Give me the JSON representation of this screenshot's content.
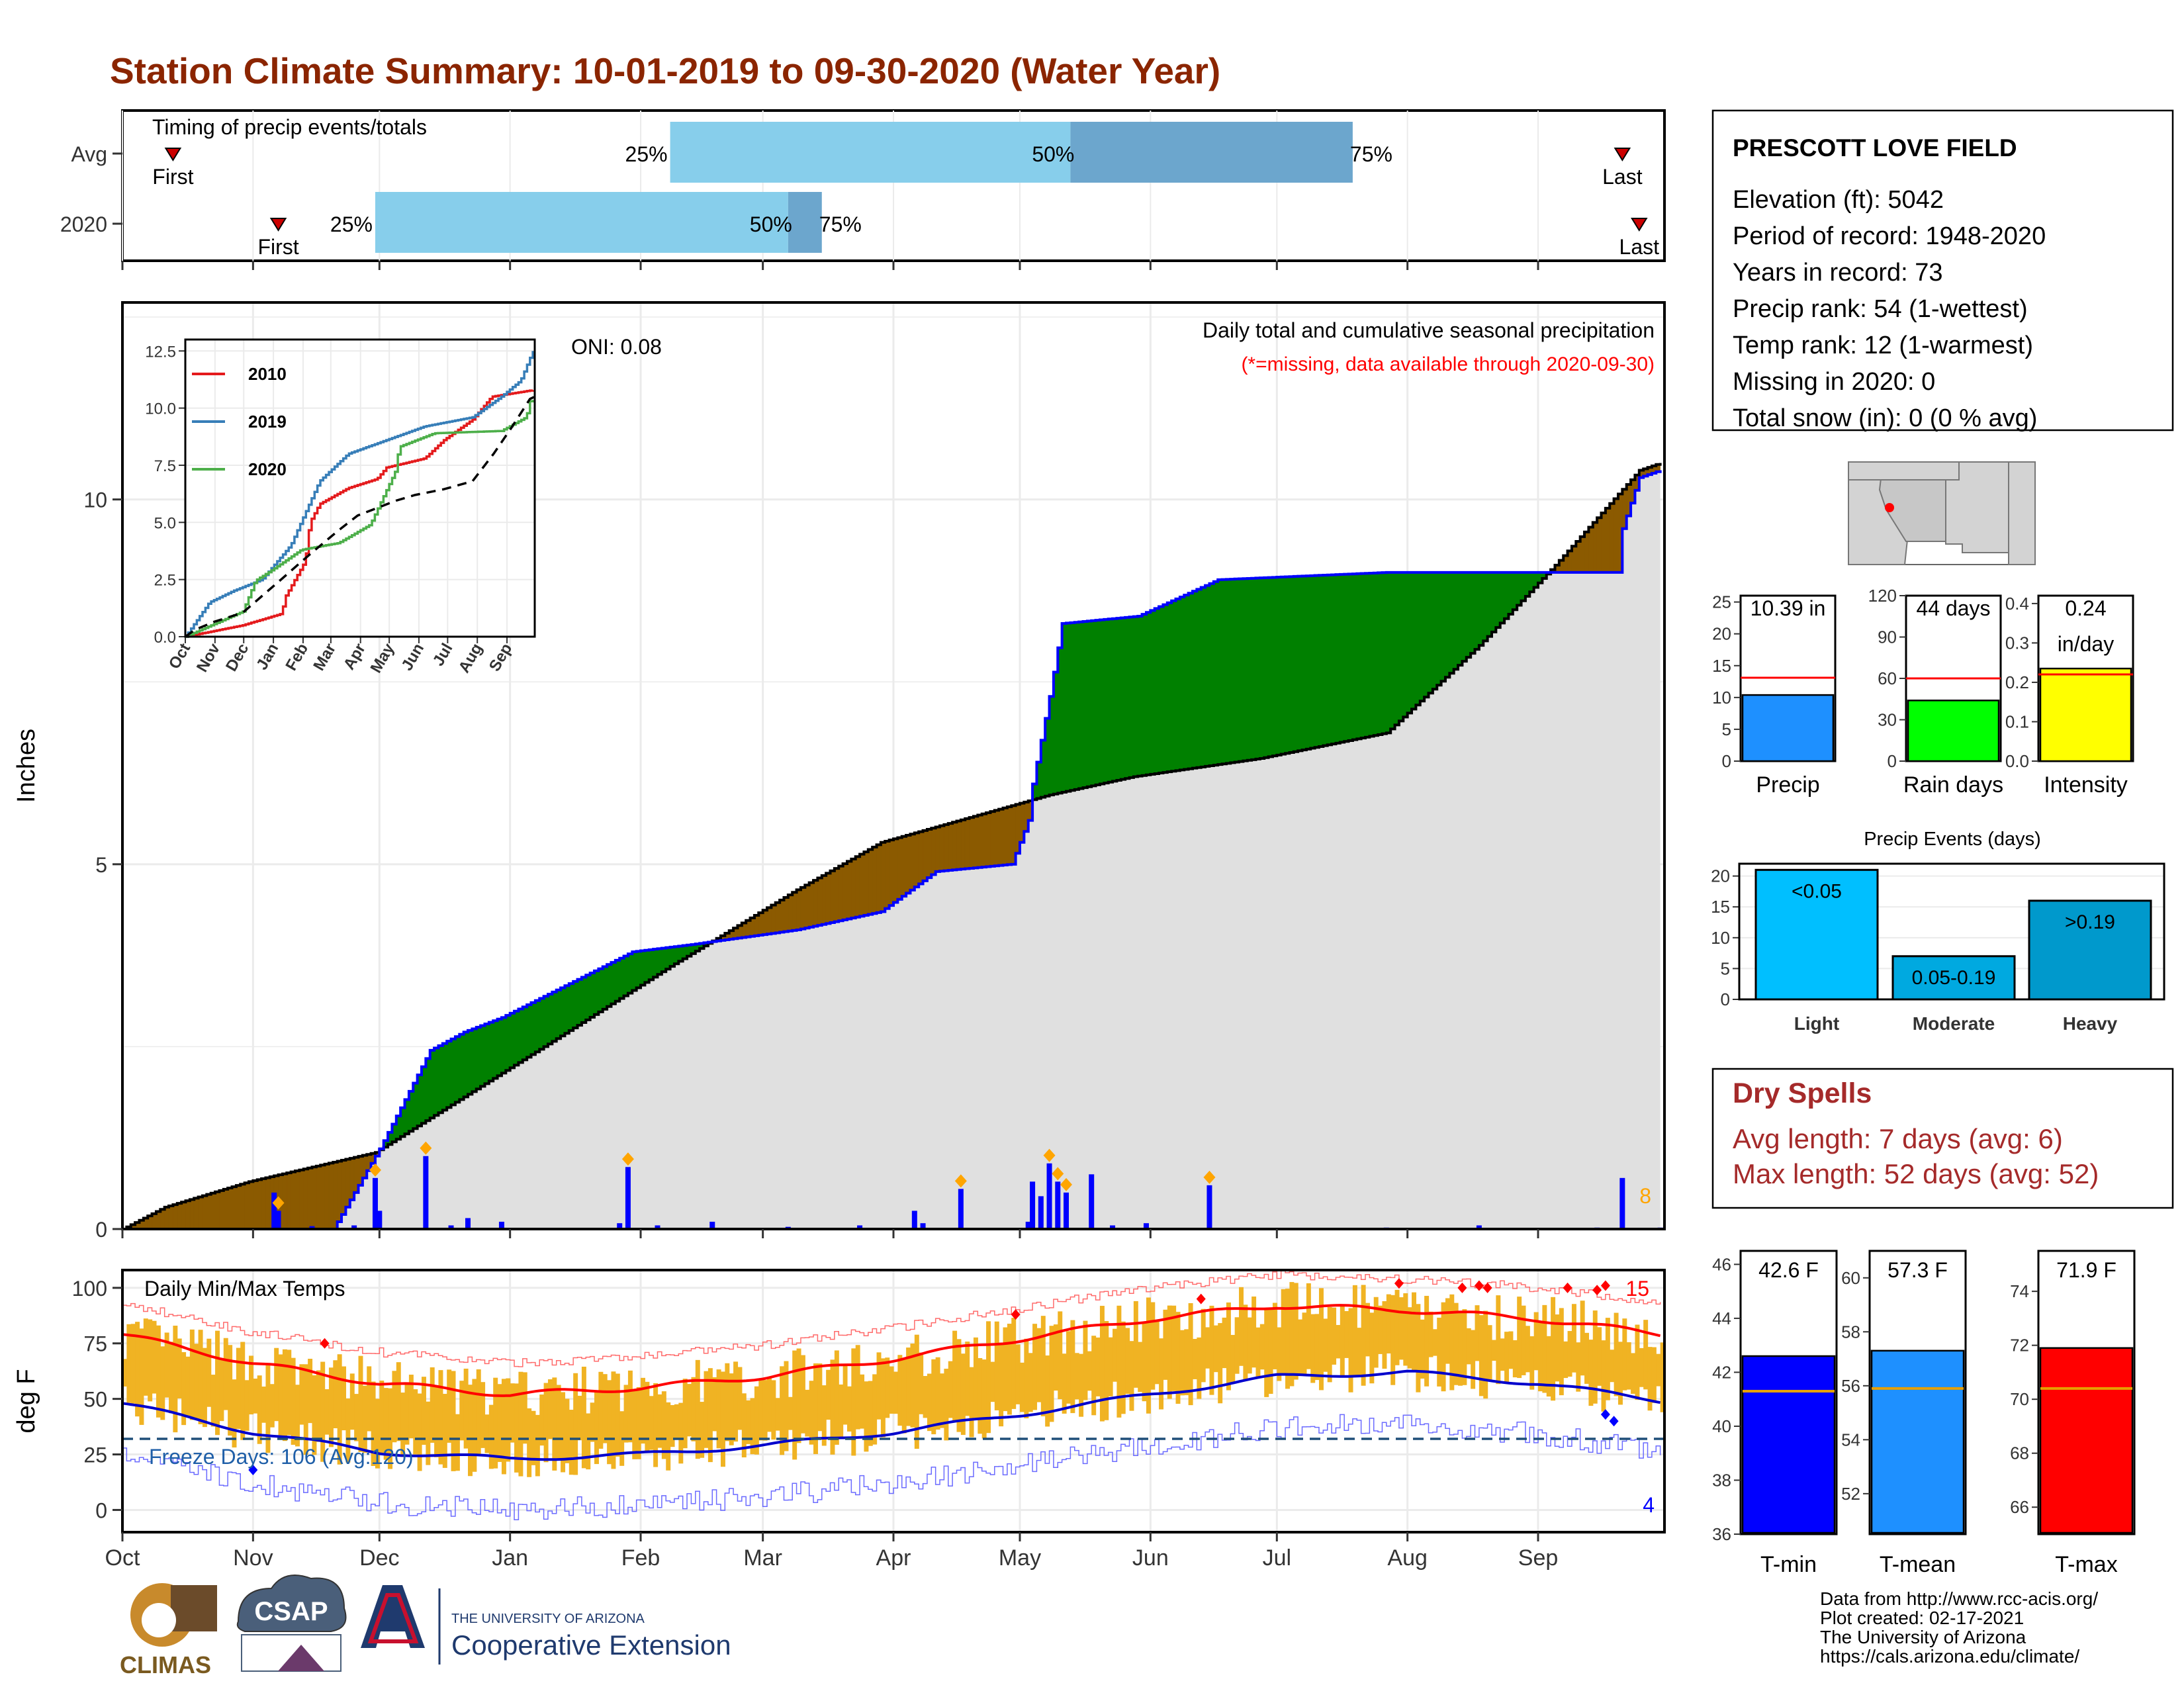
{
  "title": "Station Climate Summary: 10-01-2019 to 09-30-2020 (Water Year)",
  "colors": {
    "title": "#8B2500",
    "light_blue": "#87CEEB",
    "mid_blue": "#6CA6CD",
    "brown": "#8B5A00",
    "green": "#008000",
    "gray_fill": "#E0E0E0",
    "precip_blue": "#0000FF",
    "temp_bar": "#F0B323",
    "red": "#FF0000",
    "dark_red": "#A52A2A",
    "orange": "#FFA500"
  },
  "timing_panel": {
    "label": "Timing of precip events/totals",
    "rows": [
      {
        "name": "Avg",
        "first": "First",
        "last": "Last",
        "p25": "25%",
        "p50": "50%",
        "p75": "75%",
        "first_day": 12,
        "last_day": 356,
        "p25_day": 130,
        "p50_day": 225,
        "p75_day": 292
      },
      {
        "name": "2020",
        "first": "First",
        "last": "Last",
        "p25": "25%",
        "p50": "50%",
        "p75": "75%",
        "first_day": 37,
        "last_day": 360,
        "p25_day": 60,
        "p50_day": 158,
        "p75_day": 166
      }
    ]
  },
  "precip_panel": {
    "ylabel": "Inches",
    "yticks": [
      "0",
      "5",
      "10"
    ],
    "oni": "ONI: 0.08",
    "note_title": "Daily total and cumulative seasonal precipitation",
    "note_missing": "(*=missing, data available through 2020-09-30)",
    "corner_count": "8",
    "ylim": [
      0,
      12.7
    ],
    "avg_cum": [
      [
        0,
        0
      ],
      [
        10,
        0.3
      ],
      [
        30,
        0.65
      ],
      [
        60,
        1.05
      ],
      [
        100,
        2.5
      ],
      [
        130,
        3.6
      ],
      [
        160,
        4.65
      ],
      [
        180,
        5.3
      ],
      [
        220,
        5.95
      ],
      [
        240,
        6.2
      ],
      [
        270,
        6.45
      ],
      [
        300,
        6.8
      ],
      [
        322,
        8.0
      ],
      [
        340,
        9.1
      ],
      [
        360,
        10.4
      ],
      [
        365,
        10.5
      ]
    ],
    "cum_2020": [
      [
        0,
        0
      ],
      [
        60,
        0
      ],
      [
        61,
        1.1
      ],
      [
        62,
        1.25
      ],
      [
        63,
        1.25
      ],
      [
        70,
        1.25
      ],
      [
        71,
        1.6
      ],
      [
        72,
        1.6
      ],
      [
        73,
        2.45
      ],
      [
        80,
        2.45
      ],
      [
        81,
        2.7
      ],
      [
        90,
        2.9
      ],
      [
        110,
        2.9
      ],
      [
        111,
        3.05
      ],
      [
        120,
        3.05
      ],
      [
        121,
        3.8
      ],
      [
        135,
        3.9
      ],
      [
        142,
        4.0
      ],
      [
        160,
        4.1
      ],
      [
        180,
        4.2
      ],
      [
        182,
        4.35
      ],
      [
        190,
        4.4
      ],
      [
        193,
        4.9
      ],
      [
        210,
        4.95
      ],
      [
        211,
        5.0
      ],
      [
        215,
        5.6
      ],
      [
        216,
        6.1
      ],
      [
        218,
        6.7
      ],
      [
        220,
        7.3
      ],
      [
        223,
        8.3
      ],
      [
        240,
        8.3
      ],
      [
        241,
        8.4
      ],
      [
        245,
        8.55
      ],
      [
        260,
        8.9
      ],
      [
        300,
        9.0
      ],
      [
        350,
        9.0
      ],
      [
        355,
        9.0
      ],
      [
        356,
        9.6
      ],
      [
        360,
        10.3
      ],
      [
        400,
        10.3
      ]
    ],
    "cum_2020_full": [
      [
        0,
        0
      ],
      [
        50,
        0
      ],
      [
        61,
        1.1
      ],
      [
        73,
        2.45
      ],
      [
        81,
        2.7
      ],
      [
        90,
        2.9
      ],
      [
        121,
        3.8
      ],
      [
        135,
        3.9
      ],
      [
        160,
        4.1
      ],
      [
        180,
        4.35
      ],
      [
        193,
        4.9
      ],
      [
        211,
        5.0
      ],
      [
        215,
        5.6
      ],
      [
        216,
        6.1
      ],
      [
        218,
        6.7
      ],
      [
        220,
        7.3
      ],
      [
        223,
        8.3
      ],
      [
        241,
        8.4
      ],
      [
        260,
        8.9
      ],
      [
        300,
        9.0
      ],
      [
        355,
        9.0
      ],
      [
        356,
        9.6
      ],
      [
        360,
        10.3
      ],
      [
        365,
        10.4
      ]
    ]
  },
  "inset": {
    "yticks": [
      "0.0",
      "2.5",
      "5.0",
      "7.5",
      "10.0",
      "12.5"
    ],
    "xticks": [
      "Oct",
      "Nov",
      "Dec",
      "Jan",
      "Feb",
      "Mar",
      "Apr",
      "May",
      "Jun",
      "Jul",
      "Aug",
      "Sep"
    ],
    "legend": [
      {
        "name": "2010",
        "color": "#E41A1C"
      },
      {
        "name": "2019",
        "color": "#377EB8"
      },
      {
        "name": "2020",
        "color": "#4DAF4A"
      }
    ]
  },
  "temp_panel": {
    "title": "Daily Min/Max Temps",
    "ylabel": "deg F",
    "yticks": [
      "0",
      "25",
      "50",
      "75",
      "100"
    ],
    "freeze": "Freeze Days: 106 (Avg:120)",
    "hot_count": "15",
    "cold_count": "4",
    "ylim": [
      -10,
      108
    ]
  },
  "months": [
    "Oct",
    "Nov",
    "Dec",
    "Jan",
    "Feb",
    "Mar",
    "Apr",
    "May",
    "Jun",
    "Jul",
    "Aug",
    "Sep"
  ],
  "station": {
    "name": "PRESCOTT LOVE FIELD",
    "lines": [
      "Elevation (ft): 5042",
      "Period of record: 1948-2020",
      "Years in record: 73",
      "Precip rank: 54 (1-wettest)",
      "Temp rank: 12 (1-warmest)",
      "Missing in 2020: 0",
      "Total snow (in): 0 (0 % avg)"
    ]
  },
  "summary_bars": [
    {
      "label": "Precip",
      "value_text": "10.39 in",
      "value": 10.39,
      "avg": 13.1,
      "max": 26,
      "ticks": [
        "0",
        "5",
        "10",
        "15",
        "20",
        "25"
      ],
      "tick_vals": [
        0,
        5,
        10,
        15,
        20,
        25
      ],
      "color": "#1E90FF"
    },
    {
      "label": "Rain days",
      "value_text": "44 days",
      "value": 44,
      "avg": 60,
      "max": 120,
      "ticks": [
        "0",
        "30",
        "60",
        "90",
        "120"
      ],
      "tick_vals": [
        0,
        30,
        60,
        90,
        120
      ],
      "color": "#00FF00"
    },
    {
      "label": "Intensity",
      "value_text": "0.24",
      "value_text2": "in/day",
      "value": 0.235,
      "avg": 0.22,
      "max": 0.42,
      "ticks": [
        "0.0",
        "0.1",
        "0.2",
        "0.3",
        "0.4"
      ],
      "tick_vals": [
        0,
        0.1,
        0.2,
        0.3,
        0.4
      ],
      "color": "#FFFF00"
    }
  ],
  "events": {
    "title": "Precip Events (days)",
    "yticks": [
      "0",
      "5",
      "10",
      "15",
      "20"
    ],
    "bars": [
      {
        "category": "Light",
        "label": "<0.05",
        "value": 21,
        "color": "#00BFFF"
      },
      {
        "category": "Moderate",
        "label": "0.05-0.19",
        "value": 7,
        "color": "#00A9E0"
      },
      {
        "category": "Heavy",
        "label": ">0.19",
        "value": 16,
        "color": "#0099CC"
      }
    ]
  },
  "dry_spells": {
    "title": "Dry Spells",
    "avg": "Avg length: 7 days (avg: 6)",
    "max": "Max length: 52 days (avg: 52)"
  },
  "temp_bars": [
    {
      "label": "T-min",
      "value_text": "42.6 F",
      "value": 42.6,
      "avg": 41.3,
      "min": 36,
      "max": 46.5,
      "ticks": [
        "36",
        "38",
        "40",
        "42",
        "44",
        "46"
      ],
      "tick_vals": [
        36,
        38,
        40,
        42,
        44,
        46
      ],
      "color": "#0000FF"
    },
    {
      "label": "T-mean",
      "value_text": "57.3 F",
      "value": 57.3,
      "avg": 55.9,
      "min": 50.5,
      "max": 61,
      "ticks": [
        "52",
        "54",
        "56",
        "58",
        "60"
      ],
      "tick_vals": [
        52,
        54,
        56,
        58,
        60
      ],
      "color": "#1E90FF"
    },
    {
      "label": "T-max",
      "value_text": "71.9 F",
      "value": 71.9,
      "avg": 70.4,
      "min": 65,
      "max": 75.5,
      "ticks": [
        "66",
        "68",
        "70",
        "72",
        "74"
      ],
      "tick_vals": [
        66,
        68,
        70,
        72,
        74
      ],
      "color": "#FF0000"
    }
  ],
  "footer": {
    "lines": [
      "Data from http://www.rcc-acis.org/",
      "Plot created: 02-17-2021",
      "The University of Arizona",
      "https://cals.arizona.edu/climate/"
    ],
    "climas": "CLIMAS",
    "csap": "CSAP",
    "ua_small": "THE UNIVERSITY OF ARIZONA",
    "ua_big": "Cooperative Extension"
  },
  "chart_data": [
    {
      "type": "bar",
      "title": "Timing of precip events/totals",
      "categories": [
        "Avg",
        "2020"
      ],
      "series": [
        {
          "name": "25%",
          "values": [
            130,
            60
          ]
        },
        {
          "name": "50%",
          "values": [
            225,
            158
          ]
        },
        {
          "name": "75%",
          "values": [
            292,
            166
          ]
        }
      ]
    },
    {
      "type": "area",
      "title": "Daily total and cumulative seasonal precipitation",
      "ylabel": "Inches",
      "x": [
        "Oct",
        "Nov",
        "Dec",
        "Jan",
        "Feb",
        "Mar",
        "Apr",
        "May",
        "Jun",
        "Jul",
        "Aug",
        "Sep"
      ],
      "series": [
        {
          "name": "2020",
          "values": [
            0.0,
            0.0,
            2.45,
            3.8,
            4.0,
            4.9,
            8.3,
            8.9,
            9.0,
            9.0,
            10.3,
            10.35
          ]
        },
        {
          "name": "Avg",
          "values": [
            0.25,
            0.75,
            1.05,
            2.5,
            3.6,
            4.6,
            5.8,
            6.2,
            6.45,
            6.8,
            8.3,
            10.0
          ]
        }
      ],
      "ylim": [
        0,
        12.7
      ]
    },
    {
      "type": "line",
      "title": "Daily Min/Max Temps",
      "ylabel": "deg F",
      "x": [
        "Oct",
        "Nov",
        "Dec",
        "Jan",
        "Feb",
        "Mar",
        "Apr",
        "May",
        "Jun",
        "Jul",
        "Aug",
        "Sep"
      ],
      "series": [
        {
          "name": "Avg max",
          "values": [
            79,
            66,
            57,
            52,
            55,
            60,
            68,
            77,
            86,
            92,
            90,
            86
          ]
        },
        {
          "name": "Avg min",
          "values": [
            48,
            35,
            26,
            23,
            25,
            29,
            35,
            43,
            52,
            60,
            62,
            57
          ]
        }
      ],
      "ylim": [
        -10,
        108
      ]
    },
    {
      "type": "bar",
      "title": "Precip Events (days)",
      "categories": [
        "Light",
        "Moderate",
        "Heavy"
      ],
      "values": [
        21,
        7,
        16
      ]
    },
    {
      "type": "bar",
      "categories": [
        "Precip",
        "Rain days",
        "Intensity"
      ],
      "values": [
        10.39,
        44,
        0.24
      ]
    },
    {
      "type": "bar",
      "categories": [
        "T-min",
        "T-mean",
        "T-max"
      ],
      "values": [
        42.6,
        57.3,
        71.9
      ]
    }
  ]
}
